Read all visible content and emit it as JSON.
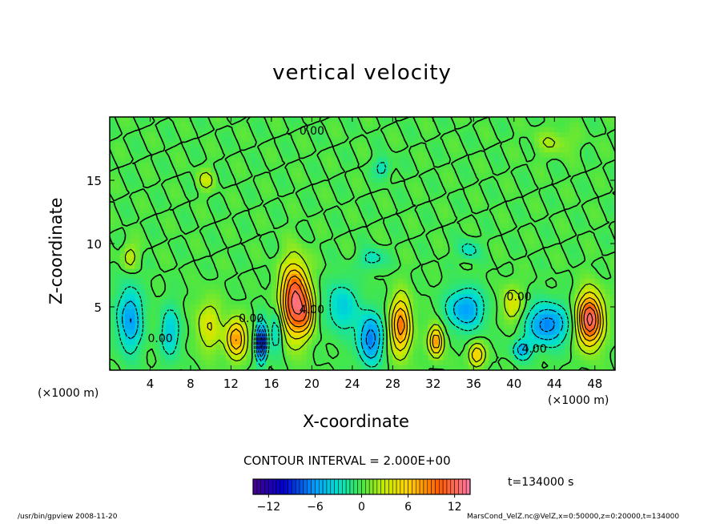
{
  "chart_data": {
    "type": "heatmap",
    "title": "vertical velocity",
    "xlabel": "X-coordinate",
    "ylabel": "Z-coordinate",
    "x_unit": "(×1000 m)",
    "x_ticks": [
      4,
      8,
      12,
      16,
      20,
      24,
      28,
      32,
      36,
      40,
      44,
      48
    ],
    "y_ticks": [
      5,
      10,
      15
    ],
    "xlim": [
      0,
      50
    ],
    "ylim": [
      0,
      20
    ],
    "contour_interval": "CONTOUR INTERVAL = 2.000E+00",
    "contour_labels": [
      {
        "text": "0.00",
        "x": 20,
        "z": 18.6
      },
      {
        "text": "4.00",
        "x": 20,
        "z": 4.5
      },
      {
        "text": "0.00",
        "x": 40.5,
        "z": 5.5
      },
      {
        "text": "4.00",
        "x": 42,
        "z": 1.4
      },
      {
        "text": "0.00",
        "x": 14,
        "z": 3.8
      },
      {
        "text": "0.00",
        "x": 5,
        "z": 2.2
      }
    ],
    "colorbar": {
      "min": -14,
      "max": 14,
      "ticks": [
        -12,
        -6,
        0,
        6,
        12
      ]
    },
    "time": "t=134000 s",
    "cells": [
      {
        "x": 18.3,
        "z": 5.5,
        "sx": 1.3,
        "sz": 2.8,
        "v": 13
      },
      {
        "x": 19.5,
        "z": 4.5,
        "sx": 0.8,
        "sz": 1.5,
        "v": 5
      },
      {
        "x": 12.5,
        "z": 2.5,
        "sx": 1.0,
        "sz": 1.5,
        "v": 8
      },
      {
        "x": 15.0,
        "z": 2.2,
        "sx": 0.5,
        "sz": 1.5,
        "v": -11
      },
      {
        "x": 16.5,
        "z": 3.0,
        "sx": 0.6,
        "sz": 1.8,
        "v": -4
      },
      {
        "x": 2.0,
        "z": 4.0,
        "sx": 1.2,
        "sz": 2.5,
        "v": -6
      },
      {
        "x": 6.0,
        "z": 3.0,
        "sx": 1.0,
        "sz": 2.0,
        "v": -4
      },
      {
        "x": 9.8,
        "z": 3.5,
        "sx": 1.2,
        "sz": 2.0,
        "v": 4
      },
      {
        "x": 23.0,
        "z": 5.0,
        "sx": 1.5,
        "sz": 2.0,
        "v": -4
      },
      {
        "x": 25.8,
        "z": 2.5,
        "sx": 1.2,
        "sz": 2.0,
        "v": -7
      },
      {
        "x": 28.8,
        "z": 3.5,
        "sx": 1.0,
        "sz": 2.2,
        "v": 9
      },
      {
        "x": 32.3,
        "z": 2.3,
        "sx": 0.7,
        "sz": 1.2,
        "v": 8
      },
      {
        "x": 35.2,
        "z": 4.8,
        "sx": 1.8,
        "sz": 1.6,
        "v": -6
      },
      {
        "x": 36.3,
        "z": 1.2,
        "sx": 0.8,
        "sz": 0.9,
        "v": 6
      },
      {
        "x": 39.8,
        "z": 5.2,
        "sx": 1.0,
        "sz": 1.4,
        "v": 4
      },
      {
        "x": 43.3,
        "z": 3.6,
        "sx": 2.0,
        "sz": 1.6,
        "v": -7
      },
      {
        "x": 40.8,
        "z": 1.6,
        "sx": 0.9,
        "sz": 0.8,
        "v": -5
      },
      {
        "x": 47.5,
        "z": 4.0,
        "sx": 1.2,
        "sz": 2.0,
        "v": 13
      },
      {
        "x": 26.0,
        "z": 8.8,
        "sx": 1.2,
        "sz": 0.8,
        "v": -3
      },
      {
        "x": 35.5,
        "z": 9.5,
        "sx": 1.0,
        "sz": 0.8,
        "v": -3
      },
      {
        "x": 2.0,
        "z": 9.0,
        "sx": 0.8,
        "sz": 1.0,
        "v": 3
      },
      {
        "x": 9.5,
        "z": 15.0,
        "sx": 0.8,
        "sz": 0.8,
        "v": 3
      },
      {
        "x": 27.0,
        "z": 16.0,
        "sx": 0.8,
        "sz": 0.8,
        "v": -3
      },
      {
        "x": 44.0,
        "z": 18.0,
        "sx": 2.0,
        "sz": 1.0,
        "v": 2
      }
    ]
  },
  "footer": {
    "left": "/usr/bin/gpview  2008-11-20",
    "right": "MarsCond_VelZ.nc@VelZ,x=0:50000,z=0:20000,t=134000"
  }
}
